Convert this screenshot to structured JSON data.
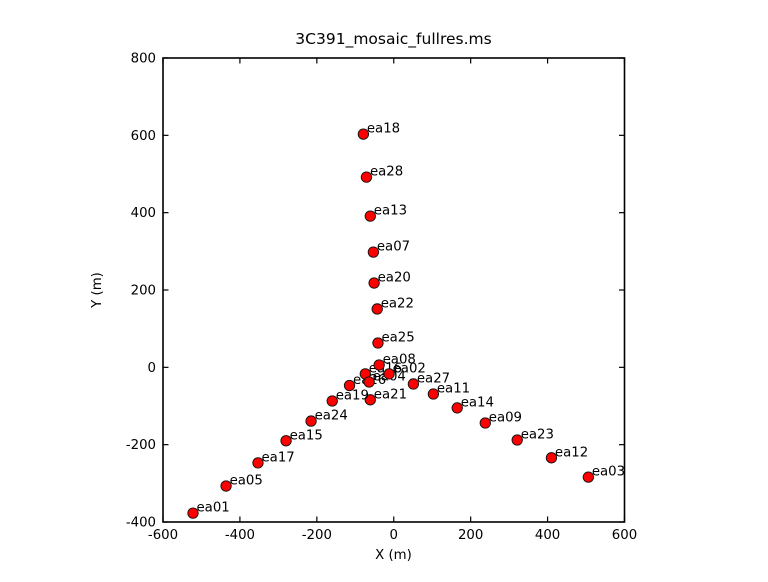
{
  "figure": {
    "title": "3C391_mosaic_fullres.ms"
  },
  "chart_data": {
    "type": "scatter",
    "title": "3C391_mosaic_fullres.ms",
    "xlabel": "X (m)",
    "ylabel": "Y (m)",
    "xlim": [
      -600,
      600
    ],
    "ylim": [
      -400,
      800
    ],
    "xticks": [
      -600,
      -400,
      -200,
      0,
      200,
      400,
      600
    ],
    "yticks": [
      -400,
      -200,
      0,
      200,
      400,
      600,
      800
    ],
    "grid": false,
    "legend": null,
    "marker": {
      "shape": "circle",
      "fill_color": "#fe0000",
      "edge_color": "#111111",
      "radius_px": 5.2
    },
    "frame_color": "#000000",
    "points": [
      {
        "name": "ea01",
        "x": -522,
        "y": -377
      },
      {
        "name": "ea02",
        "x": -12,
        "y": -17
      },
      {
        "name": "ea03",
        "x": 506,
        "y": -284
      },
      {
        "name": "ea04",
        "x": -64,
        "y": -38
      },
      {
        "name": "ea05",
        "x": -436,
        "y": -307
      },
      {
        "name": "ea07",
        "x": -53,
        "y": 298
      },
      {
        "name": "ea08",
        "x": -38,
        "y": 6
      },
      {
        "name": "ea09",
        "x": 238,
        "y": -144
      },
      {
        "name": "ea11",
        "x": 103,
        "y": -69
      },
      {
        "name": "ea12",
        "x": 410,
        "y": -234
      },
      {
        "name": "ea13",
        "x": -61,
        "y": 391
      },
      {
        "name": "ea14",
        "x": 165,
        "y": -105
      },
      {
        "name": "ea15",
        "x": -280,
        "y": -190
      },
      {
        "name": "ea16",
        "x": -74,
        "y": -17
      },
      {
        "name": "ea17",
        "x": -353,
        "y": -247
      },
      {
        "name": "ea18",
        "x": -79,
        "y": 603
      },
      {
        "name": "ea19",
        "x": -160,
        "y": -87
      },
      {
        "name": "ea20",
        "x": -51,
        "y": 218
      },
      {
        "name": "ea21",
        "x": -61,
        "y": -84
      },
      {
        "name": "ea22",
        "x": -43,
        "y": 151
      },
      {
        "name": "ea23",
        "x": 321,
        "y": -188
      },
      {
        "name": "ea24",
        "x": -215,
        "y": -139
      },
      {
        "name": "ea25",
        "x": -41,
        "y": 63
      },
      {
        "name": "ea26",
        "x": -115,
        "y": -47
      },
      {
        "name": "ea27",
        "x": 51,
        "y": -43
      },
      {
        "name": "ea28",
        "x": -71,
        "y": 492
      }
    ]
  }
}
